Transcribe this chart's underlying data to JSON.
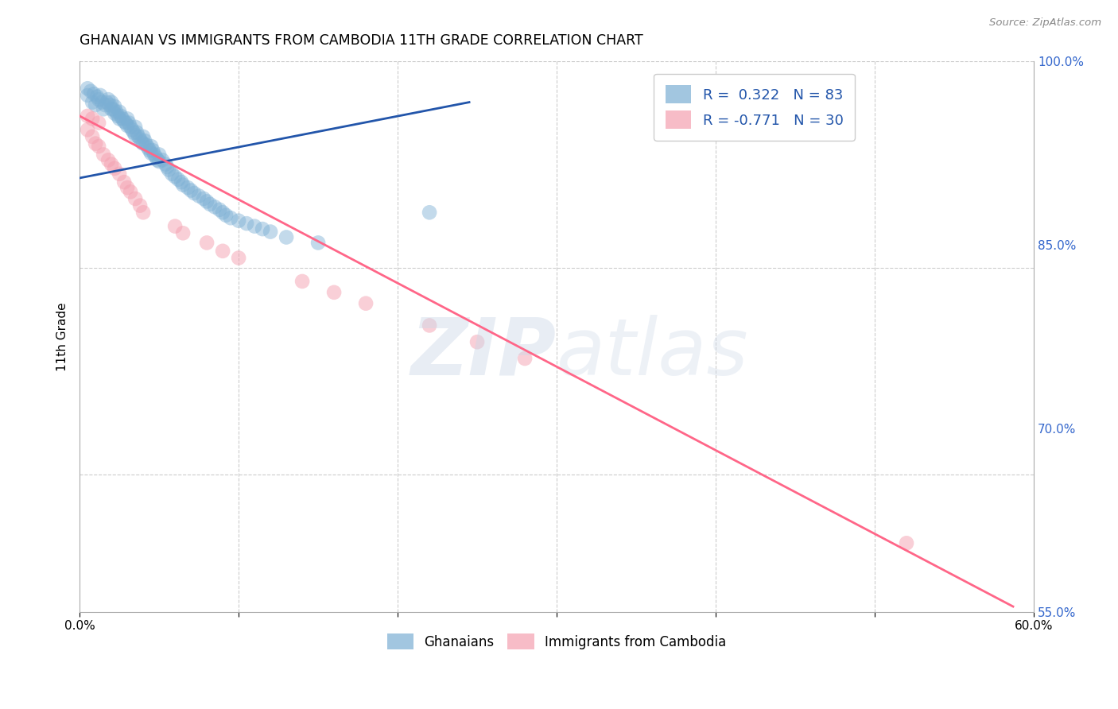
{
  "title": "GHANAIAN VS IMMIGRANTS FROM CAMBODIA 11TH GRADE CORRELATION CHART",
  "source": "Source: ZipAtlas.com",
  "xmin": 0.0,
  "xmax": 0.6,
  "ymin": 0.6,
  "ymax": 1.0,
  "right_ytick_vals": [
    1.0,
    0.85,
    0.7,
    0.55
  ],
  "right_ytick_labels": [
    "100.0%",
    "85.0%",
    "70.0%",
    "55.0%"
  ],
  "xtick_vals": [
    0.0,
    0.1,
    0.2,
    0.3,
    0.4,
    0.5,
    0.6
  ],
  "xtick_labels": [
    "0.0%",
    "",
    "",
    "",
    "",
    "",
    "60.0%"
  ],
  "blue_color": "#7BAFD4",
  "pink_color": "#F4A0B0",
  "blue_line_color": "#2255AA",
  "pink_line_color": "#FF6688",
  "ylabel": "11th Grade",
  "legend_label_blue": "Ghanaians",
  "legend_label_pink": "Immigrants from Cambodia",
  "legend_r_blue": "R =  0.322   N = 83",
  "legend_r_pink": "R = -0.771   N = 30",
  "blue_scatter_x": [
    0.005,
    0.008,
    0.01,
    0.012,
    0.013,
    0.014,
    0.015,
    0.016,
    0.017,
    0.018,
    0.019,
    0.02,
    0.02,
    0.021,
    0.022,
    0.022,
    0.023,
    0.024,
    0.025,
    0.025,
    0.026,
    0.027,
    0.028,
    0.029,
    0.03,
    0.03,
    0.031,
    0.032,
    0.033,
    0.034,
    0.035,
    0.035,
    0.036,
    0.037,
    0.038,
    0.039,
    0.04,
    0.04,
    0.041,
    0.042,
    0.043,
    0.044,
    0.045,
    0.045,
    0.046,
    0.047,
    0.048,
    0.049,
    0.05,
    0.05,
    0.052,
    0.054,
    0.055,
    0.056,
    0.058,
    0.06,
    0.062,
    0.064,
    0.065,
    0.068,
    0.07,
    0.072,
    0.075,
    0.078,
    0.08,
    0.082,
    0.085,
    0.088,
    0.09,
    0.092,
    0.095,
    0.1,
    0.105,
    0.11,
    0.115,
    0.12,
    0.13,
    0.15,
    0.005,
    0.007,
    0.009,
    0.011,
    0.22
  ],
  "blue_scatter_y": [
    0.975,
    0.97,
    0.968,
    0.972,
    0.975,
    0.97,
    0.965,
    0.968,
    0.97,
    0.972,
    0.968,
    0.965,
    0.97,
    0.965,
    0.962,
    0.967,
    0.963,
    0.96,
    0.958,
    0.963,
    0.96,
    0.958,
    0.956,
    0.955,
    0.953,
    0.958,
    0.955,
    0.952,
    0.95,
    0.948,
    0.946,
    0.952,
    0.948,
    0.945,
    0.943,
    0.941,
    0.94,
    0.945,
    0.942,
    0.939,
    0.937,
    0.935,
    0.933,
    0.938,
    0.935,
    0.932,
    0.93,
    0.928,
    0.927,
    0.932,
    0.928,
    0.925,
    0.923,
    0.921,
    0.918,
    0.916,
    0.914,
    0.912,
    0.91,
    0.908,
    0.906,
    0.904,
    0.902,
    0.9,
    0.898,
    0.896,
    0.894,
    0.892,
    0.89,
    0.888,
    0.886,
    0.884,
    0.882,
    0.88,
    0.878,
    0.876,
    0.872,
    0.868,
    0.98,
    0.978,
    0.976,
    0.974,
    0.89
  ],
  "pink_scatter_x": [
    0.005,
    0.008,
    0.01,
    0.012,
    0.015,
    0.018,
    0.02,
    0.022,
    0.025,
    0.028,
    0.03,
    0.032,
    0.035,
    0.038,
    0.04,
    0.005,
    0.008,
    0.012,
    0.06,
    0.065,
    0.08,
    0.09,
    0.1,
    0.14,
    0.16,
    0.18,
    0.22,
    0.25,
    0.28,
    0.52
  ],
  "pink_scatter_y": [
    0.95,
    0.945,
    0.94,
    0.938,
    0.932,
    0.928,
    0.925,
    0.922,
    0.918,
    0.912,
    0.908,
    0.905,
    0.9,
    0.895,
    0.89,
    0.96,
    0.958,
    0.955,
    0.88,
    0.875,
    0.868,
    0.862,
    0.857,
    0.84,
    0.832,
    0.824,
    0.808,
    0.796,
    0.784,
    0.65
  ],
  "blue_line_x": [
    0.0,
    0.245
  ],
  "blue_line_y": [
    0.915,
    0.97
  ],
  "pink_line_x": [
    0.0,
    0.587
  ],
  "pink_line_y": [
    0.96,
    0.604
  ],
  "hgrid_vals": [
    1.0,
    0.85,
    0.7,
    0.55
  ],
  "vgrid_vals": [
    0.1,
    0.2,
    0.3,
    0.4,
    0.5
  ]
}
